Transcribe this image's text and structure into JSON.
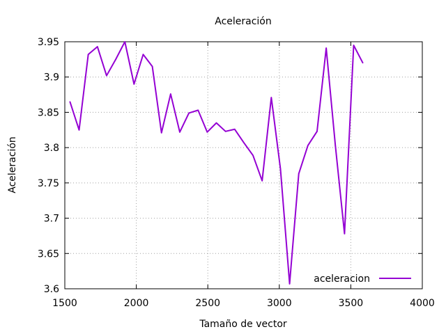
{
  "chart_data": {
    "type": "line",
    "title": "Aceleración",
    "xlabel": "Tamaño de vector",
    "ylabel": "Aceleración",
    "xlim": [
      1500,
      4000
    ],
    "ylim": [
      3.6,
      3.95
    ],
    "xticks": [
      1500,
      2000,
      2500,
      3000,
      3500,
      4000
    ],
    "xtick_labels": [
      "1500",
      "2000",
      "2500",
      "3000",
      "3500",
      "4000"
    ],
    "yticks": [
      3.6,
      3.65,
      3.7,
      3.75,
      3.8,
      3.85,
      3.9,
      3.95
    ],
    "ytick_labels": [
      "3.6",
      "3.65",
      "3.7",
      "3.75",
      "3.8",
      "3.85",
      "3.9",
      "3.95"
    ],
    "grid": true,
    "legend_position": "bottom-right",
    "series": [
      {
        "name": "aceleracion",
        "color": "#9400d3",
        "x": [
          1536,
          1600,
          1664,
          1728,
          1792,
          1856,
          1920,
          1984,
          2048,
          2112,
          2176,
          2240,
          2304,
          2368,
          2432,
          2496,
          2560,
          2624,
          2688,
          2752,
          2816,
          2880,
          2944,
          3008,
          3072,
          3136,
          3200,
          3264,
          3328,
          3392,
          3456,
          3520,
          3584
        ],
        "y": [
          3.865,
          3.825,
          3.932,
          3.943,
          3.902,
          3.925,
          3.95,
          3.89,
          3.932,
          3.915,
          3.821,
          3.876,
          3.822,
          3.849,
          3.853,
          3.822,
          3.835,
          3.823,
          3.826,
          3.807,
          3.789,
          3.753,
          3.871,
          3.77,
          3.607,
          3.763,
          3.803,
          3.823,
          3.941,
          3.803,
          3.678,
          3.945,
          3.92
        ]
      }
    ]
  }
}
